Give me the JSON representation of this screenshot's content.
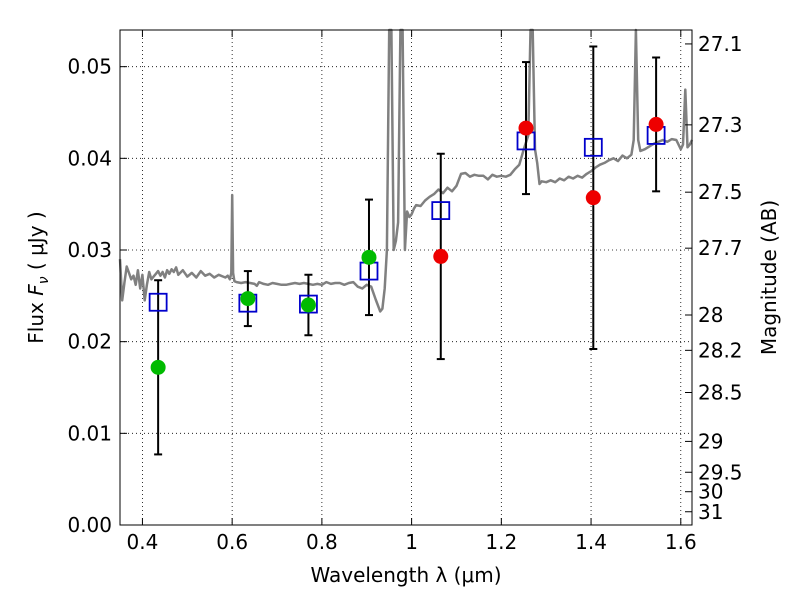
{
  "chart_data": {
    "type": "scatter",
    "xlabel": "Wavelength  λ (μm)",
    "ylabel": "Flux  F_ν  ( μJy )",
    "ylabel_right": "Magnitude (AB)",
    "xlim": [
      0.35,
      1.625
    ],
    "ylim": [
      0.0,
      0.054
    ],
    "grid": true,
    "x_ticks": [
      {
        "value": 0.4,
        "label": "0.4"
      },
      {
        "value": 0.6,
        "label": "0.6"
      },
      {
        "value": 0.8,
        "label": "0.8"
      },
      {
        "value": 1.0,
        "label": "1"
      },
      {
        "value": 1.2,
        "label": "1.2"
      },
      {
        "value": 1.4,
        "label": "1.4"
      },
      {
        "value": 1.6,
        "label": "1.6"
      }
    ],
    "y_ticks": [
      {
        "value": 0.0,
        "label": "0.00"
      },
      {
        "value": 0.01,
        "label": "0.01"
      },
      {
        "value": 0.02,
        "label": "0.02"
      },
      {
        "value": 0.03,
        "label": "0.03"
      },
      {
        "value": 0.04,
        "label": "0.04"
      },
      {
        "value": 0.05,
        "label": "0.05"
      }
    ],
    "right_ticks": [
      {
        "mag": 27.1,
        "label": "27.1"
      },
      {
        "mag": 27.3,
        "label": "27.3"
      },
      {
        "mag": 27.5,
        "label": "27.5"
      },
      {
        "mag": 27.7,
        "label": "27.7"
      },
      {
        "mag": 28.0,
        "label": "28"
      },
      {
        "mag": 28.2,
        "label": "28.2"
      },
      {
        "mag": 28.5,
        "label": "28.5"
      },
      {
        "mag": 29.0,
        "label": "29"
      },
      {
        "mag": 29.5,
        "label": "29.5"
      },
      {
        "mag": 30.0,
        "label": "30"
      },
      {
        "mag": 31.0,
        "label": "31"
      }
    ],
    "model_spectrum": {
      "color": "#808080",
      "x": [
        0.35,
        0.355,
        0.36,
        0.365,
        0.37,
        0.375,
        0.38,
        0.385,
        0.39,
        0.395,
        0.4,
        0.405,
        0.41,
        0.415,
        0.42,
        0.425,
        0.43,
        0.435,
        0.44,
        0.445,
        0.45,
        0.455,
        0.46,
        0.465,
        0.47,
        0.475,
        0.48,
        0.49,
        0.5,
        0.51,
        0.52,
        0.53,
        0.54,
        0.55,
        0.56,
        0.57,
        0.58,
        0.585,
        0.59,
        0.595,
        0.598,
        0.6,
        0.602,
        0.605,
        0.61,
        0.62,
        0.63,
        0.64,
        0.65,
        0.655,
        0.66,
        0.665,
        0.67,
        0.68,
        0.69,
        0.7,
        0.71,
        0.72,
        0.73,
        0.74,
        0.75,
        0.76,
        0.77,
        0.78,
        0.79,
        0.8,
        0.81,
        0.82,
        0.83,
        0.84,
        0.85,
        0.86,
        0.87,
        0.88,
        0.89,
        0.9,
        0.91,
        0.92,
        0.93,
        0.935,
        0.94,
        0.945,
        0.95,
        0.955,
        0.96,
        0.965,
        0.97,
        0.975,
        0.98,
        0.985,
        0.99,
        0.995,
        1.0,
        1.005,
        1.01,
        1.02,
        1.03,
        1.04,
        1.05,
        1.06,
        1.07,
        1.08,
        1.09,
        1.1,
        1.11,
        1.12,
        1.13,
        1.14,
        1.15,
        1.16,
        1.17,
        1.18,
        1.19,
        1.2,
        1.21,
        1.22,
        1.23,
        1.24,
        1.25,
        1.26,
        1.265,
        1.27,
        1.275,
        1.28,
        1.285,
        1.29,
        1.3,
        1.31,
        1.32,
        1.33,
        1.34,
        1.35,
        1.36,
        1.37,
        1.38,
        1.39,
        1.4,
        1.41,
        1.42,
        1.43,
        1.44,
        1.45,
        1.46,
        1.47,
        1.48,
        1.49,
        1.495,
        1.5,
        1.505,
        1.51,
        1.52,
        1.53,
        1.54,
        1.55,
        1.56,
        1.57,
        1.58,
        1.59,
        1.6,
        1.605,
        1.61,
        1.615,
        1.62,
        1.625
      ],
      "y": [
        0.029,
        0.0245,
        0.0265,
        0.0282,
        0.0275,
        0.0268,
        0.0272,
        0.0262,
        0.0278,
        0.0258,
        0.0273,
        0.0245,
        0.0262,
        0.0276,
        0.0268,
        0.0271,
        0.0274,
        0.0277,
        0.0272,
        0.0276,
        0.027,
        0.0278,
        0.0274,
        0.0279,
        0.0276,
        0.0281,
        0.0273,
        0.0278,
        0.0271,
        0.0275,
        0.027,
        0.0277,
        0.0272,
        0.0274,
        0.027,
        0.0273,
        0.0271,
        0.027,
        0.0272,
        0.0268,
        0.0275,
        0.036,
        0.0275,
        0.0266,
        0.0265,
        0.0264,
        0.0265,
        0.0264,
        0.0263,
        0.0261,
        0.0265,
        0.0264,
        0.0263,
        0.0262,
        0.0264,
        0.0263,
        0.0262,
        0.0262,
        0.0263,
        0.0264,
        0.0263,
        0.0264,
        0.0263,
        0.0262,
        0.0263,
        0.0262,
        0.0265,
        0.0263,
        0.0264,
        0.0264,
        0.0262,
        0.0264,
        0.0265,
        0.026,
        0.0258,
        0.0262,
        0.026,
        0.0246,
        0.0233,
        0.0236,
        0.0258,
        0.03,
        0.054,
        0.054,
        0.03,
        0.031,
        0.033,
        0.054,
        0.054,
        0.03,
        0.0342,
        0.0336,
        0.0339,
        0.0345,
        0.0349,
        0.0348,
        0.0354,
        0.0358,
        0.0361,
        0.0366,
        0.0362,
        0.0368,
        0.0364,
        0.037,
        0.0383,
        0.0384,
        0.038,
        0.0382,
        0.0381,
        0.0381,
        0.0377,
        0.0382,
        0.038,
        0.0381,
        0.038,
        0.0382,
        0.0388,
        0.0393,
        0.041,
        0.0425,
        0.054,
        0.054,
        0.041,
        0.0395,
        0.0372,
        0.0375,
        0.0374,
        0.0376,
        0.0374,
        0.0378,
        0.0376,
        0.038,
        0.0378,
        0.0381,
        0.0379,
        0.0383,
        0.0386,
        0.039,
        0.0393,
        0.0395,
        0.0398,
        0.04,
        0.0397,
        0.0403,
        0.04,
        0.0404,
        0.042,
        0.054,
        0.042,
        0.0408,
        0.041,
        0.0413,
        0.0416,
        0.0418,
        0.042,
        0.0418,
        0.0421,
        0.042,
        0.041,
        0.0415,
        0.0475,
        0.0412,
        0.0415,
        0.042
      ]
    },
    "photometry_boxes": {
      "color": "#0000cc",
      "x": [
        0.435,
        0.635,
        0.77,
        0.905,
        1.065,
        1.255,
        1.405,
        1.545
      ],
      "y": [
        0.0243,
        0.0242,
        0.0241,
        0.0277,
        0.0343,
        0.0419,
        0.0412,
        0.0425
      ]
    },
    "detections_green": {
      "color": "#00bb00",
      "x": [
        0.435,
        0.635,
        0.77,
        0.905
      ],
      "y": [
        0.0172,
        0.0247,
        0.024,
        0.0292
      ],
      "err": [
        0.0095,
        0.003,
        0.0033,
        0.0063
      ]
    },
    "detections_red": {
      "color": "#ee0000",
      "x": [
        1.065,
        1.255,
        1.405,
        1.545
      ],
      "y": [
        0.0293,
        0.0433,
        0.0357,
        0.0437
      ],
      "err": [
        0.0112,
        0.0072,
        0.0165,
        0.0073
      ]
    }
  }
}
